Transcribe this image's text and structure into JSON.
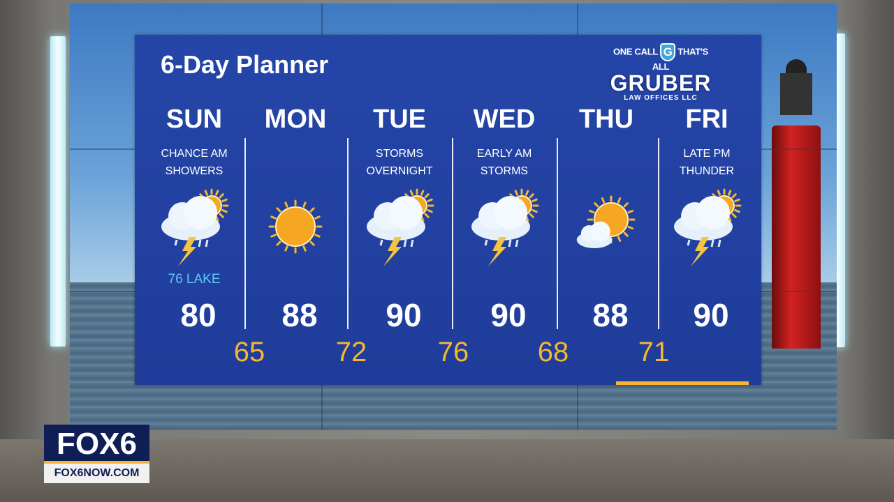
{
  "title": "6-Day Planner",
  "sponsor": {
    "tagline_left": "ONE CALL",
    "tagline_right": "THAT'S ALL",
    "badge_letter": "G",
    "name": "GRUBER",
    "sub": "LAW OFFICES LLC"
  },
  "days": [
    {
      "day": "SUN",
      "cond1": "Chance AM",
      "cond2": "Showers",
      "icon": "thunderstorm-sun-icon",
      "note": "76 LAKE",
      "high": "80"
    },
    {
      "day": "MON",
      "cond1": "",
      "cond2": "",
      "icon": "sunny-icon",
      "high": "88"
    },
    {
      "day": "TUE",
      "cond1": "Storms",
      "cond2": "Overnight",
      "icon": "thunderstorm-sun-icon",
      "high": "90"
    },
    {
      "day": "WED",
      "cond1": "Early AM",
      "cond2": "Storms",
      "icon": "thunderstorm-sun-icon",
      "high": "90"
    },
    {
      "day": "THU",
      "cond1": "",
      "cond2": "",
      "icon": "mostly-sunny-icon",
      "high": "88"
    },
    {
      "day": "FRI",
      "cond1": "Late PM",
      "cond2": "Thunder",
      "icon": "thunderstorm-sun-icon",
      "high": "90"
    }
  ],
  "lows": [
    "65",
    "72",
    "76",
    "68",
    "71"
  ],
  "colors": {
    "panel": "#2546a9",
    "low": "#f5b731",
    "lake": "#5fc8f5"
  },
  "station": {
    "logo": "FOX6",
    "url": "FOX6NOW.COM"
  }
}
